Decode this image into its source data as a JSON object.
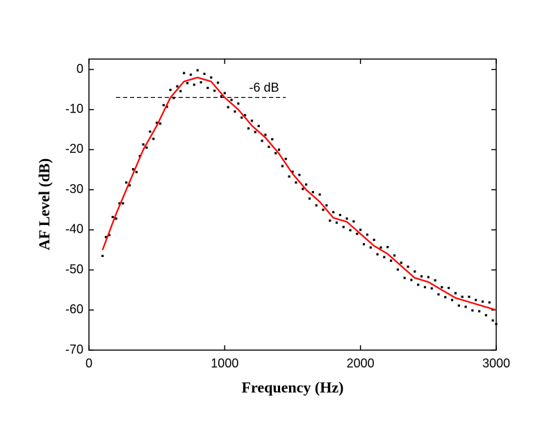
{
  "chart_data": {
    "type": "line",
    "xlabel": "Frequency (Hz)",
    "ylabel": "AF Level (dB)",
    "xlim": [
      0,
      3000
    ],
    "xticks": [
      0,
      1000,
      2000,
      3000
    ],
    "ylim": [
      -70,
      2.6
    ],
    "yticks": [
      0,
      -10,
      -20,
      -30,
      -40,
      -50,
      -60,
      -70
    ],
    "grid": false,
    "reference_line": {
      "y": -7,
      "x": [
        200,
        1450
      ],
      "color": "#000000",
      "dashed": true
    },
    "annotation": "-6 dB",
    "series": [
      {
        "color": "#000000",
        "style": "points",
        "x": [
          100,
          125,
          150,
          175,
          200,
          225,
          250,
          275,
          300,
          325,
          350,
          375,
          400,
          425,
          450,
          475,
          500,
          525,
          550,
          575,
          600,
          625,
          650,
          675,
          700,
          725,
          750,
          775,
          800,
          825,
          850,
          875,
          900,
          925,
          950,
          975,
          1000,
          1025,
          1050,
          1075,
          1100,
          1125,
          1150,
          1175,
          1200,
          1225,
          1250,
          1275,
          1300,
          1325,
          1350,
          1375,
          1400,
          1425,
          1450,
          1475,
          1500,
          1525,
          1550,
          1575,
          1600,
          1625,
          1650,
          1675,
          1700,
          1725,
          1750,
          1775,
          1800,
          1825,
          1850,
          1875,
          1900,
          1925,
          1950,
          1975,
          2000,
          2025,
          2050,
          2075,
          2100,
          2125,
          2150,
          2175,
          2200,
          2225,
          2250,
          2275,
          2300,
          2325,
          2350,
          2375,
          2400,
          2425,
          2450,
          2475,
          2500,
          2525,
          2550,
          2575,
          2600,
          2625,
          2650,
          2675,
          2700,
          2725,
          2750,
          2775,
          2800,
          2825,
          2850,
          2875,
          2900,
          2925,
          2950,
          2975,
          3000
        ],
        "values": [
          -46.5,
          -41.8,
          -41.3,
          -36.8,
          -37.2,
          -33.4,
          -33.4,
          -28.2,
          -28.9,
          -24.9,
          -25.6,
          -21.6,
          -18.7,
          -19.5,
          -15.5,
          -17.3,
          -13.3,
          -13.5,
          -8.9,
          -9.3,
          -5.1,
          -7.1,
          -4.2,
          -5.4,
          -0.9,
          -3.4,
          -1.3,
          -3.8,
          -0.2,
          -3.2,
          -1.1,
          -4.6,
          -2,
          -5.3,
          -3.3,
          -6.7,
          -5.9,
          -9.4,
          -7.6,
          -10.5,
          -8.5,
          -12,
          -11.4,
          -14.7,
          -12.8,
          -15.6,
          -14.1,
          -17.8,
          -16.3,
          -19.3,
          -17.4,
          -20.9,
          -20,
          -24.1,
          -22.3,
          -26.7,
          -25.5,
          -28.2,
          -26.3,
          -29.8,
          -28.7,
          -32.2,
          -30.6,
          -33.9,
          -31.2,
          -35,
          -33.9,
          -37.7,
          -35.6,
          -38.2,
          -36.3,
          -39.3,
          -37.2,
          -40.1,
          -37.9,
          -41,
          -40,
          -43.6,
          -41.2,
          -44.4,
          -42.5,
          -46.1,
          -44.4,
          -46.8,
          -44.3,
          -47.7,
          -46.4,
          -49.9,
          -48.2,
          -52,
          -49.2,
          -52.5,
          -50.4,
          -53.7,
          -51.6,
          -54.3,
          -51.8,
          -54.6,
          -52.6,
          -56.1,
          -54.3,
          -56.8,
          -54.5,
          -57.5,
          -55.8,
          -58.9,
          -56.7,
          -59.2,
          -56.7,
          -60.1,
          -57.5,
          -60.3,
          -57.9,
          -61.3,
          -58.1,
          -62.6,
          -63.5
        ]
      },
      {
        "color": "#ff0000",
        "style": "line",
        "x": [
          100,
          200,
          300,
          400,
          500,
          600,
          700,
          800,
          900,
          1000,
          1100,
          1200,
          1300,
          1400,
          1500,
          1600,
          1700,
          1800,
          1900,
          2000,
          2100,
          2200,
          2300,
          2400,
          2500,
          2600,
          2700,
          2800,
          2900,
          3000
        ],
        "values": [
          -45,
          -36,
          -28,
          -20,
          -14,
          -7,
          -3,
          -2,
          -3,
          -7,
          -10,
          -14,
          -17,
          -21,
          -26,
          -30,
          -33,
          -37,
          -38,
          -41,
          -44,
          -46,
          -49,
          -52,
          -53,
          -55,
          -57,
          -58,
          -59,
          -60
        ]
      }
    ]
  }
}
